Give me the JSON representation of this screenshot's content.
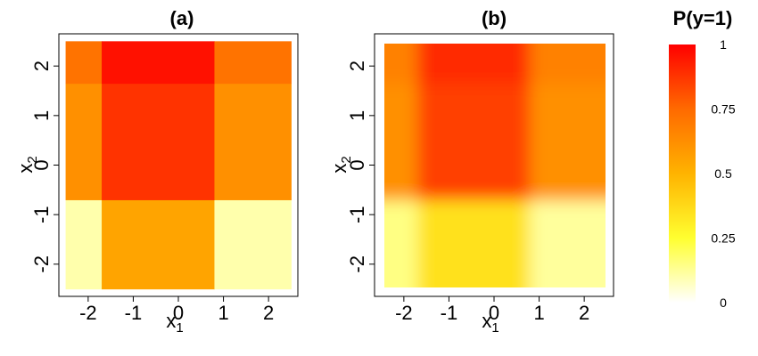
{
  "chart_data": [
    {
      "type": "heatmap",
      "title": "(a)",
      "xlabel": "x",
      "xlabel_sub": "1",
      "ylabel": "x",
      "ylabel_sub": "2",
      "xlim": [
        -2.65,
        2.65
      ],
      "ylim": [
        -2.65,
        2.65
      ],
      "xticks": [
        -2,
        -1,
        0,
        1,
        2
      ],
      "yticks": [
        -2,
        -1,
        0,
        1,
        2
      ],
      "grid": false,
      "x_edges": [
        -2.5,
        -1.7,
        0.8,
        2.5
      ],
      "y_edges": [
        -2.5,
        -0.7,
        1.65,
        2.5
      ],
      "values": [
        [
          0.1,
          0.55,
          0.1
        ],
        [
          0.62,
          0.88,
          0.62
        ],
        [
          0.72,
          0.96,
          0.72
        ]
      ]
    },
    {
      "type": "heatmap",
      "title": "(b)",
      "xlabel": "x",
      "xlabel_sub": "1",
      "ylabel": "x",
      "ylabel_sub": "2",
      "xlim": [
        -2.65,
        2.65
      ],
      "ylim": [
        -2.65,
        2.65
      ],
      "xticks": [
        -2,
        -1,
        0,
        1,
        2
      ],
      "yticks": [
        -2,
        -1,
        0,
        1,
        2
      ],
      "grid": false,
      "smooth": true,
      "x_edges": [
        -2.5,
        -1.7,
        0.8,
        2.5
      ],
      "y_edges": [
        -2.5,
        -0.7,
        1.65,
        2.5
      ],
      "values": [
        [
          0.15,
          0.35,
          0.12
        ],
        [
          0.62,
          0.85,
          0.62
        ],
        [
          0.67,
          0.9,
          0.67
        ]
      ]
    }
  ],
  "colorbar": {
    "title": "P(y=1)",
    "ticks": [
      0,
      0.25,
      0.5,
      0.75,
      1
    ],
    "tick_labels": [
      "0",
      "0.25",
      "0.5",
      "0.75",
      "1"
    ],
    "range": [
      0,
      1
    ]
  }
}
